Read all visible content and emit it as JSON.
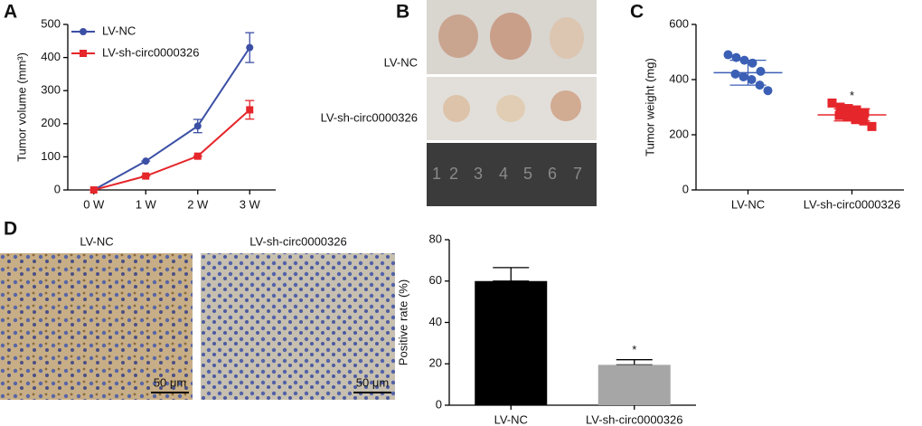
{
  "panel_letters": [
    "A",
    "B",
    "C",
    "D"
  ],
  "photo_panels": {
    "B": {
      "row_labels": [
        "LV-NC",
        "LV-sh-circ0000326"
      ],
      "ruler_labels": [
        "1",
        "2",
        "3",
        "4",
        "5",
        "6",
        "7"
      ]
    },
    "D": {
      "image_labels": [
        "LV-NC",
        "LV-sh-circ0000326"
      ],
      "scale_bars": [
        "50 μm",
        "50 μm"
      ]
    }
  },
  "chart_data": [
    {
      "type": "line",
      "y_label": "Tumor volume (mm³)",
      "categories": [
        "0 W",
        "1 W",
        "2 W",
        "3 W"
      ],
      "series": [
        {
          "name": "LV-NC",
          "color": "#3b4fa5",
          "marker": "circle",
          "values": [
            0,
            87,
            193,
            430
          ],
          "errors": [
            0,
            0,
            20,
            45
          ]
        },
        {
          "name": "LV-sh-circ0000326",
          "color": "#e5262b",
          "marker": "square",
          "values": [
            0,
            42,
            102,
            242
          ],
          "errors": [
            0,
            0,
            0,
            28
          ]
        }
      ],
      "ylim": [
        0,
        500
      ],
      "yticks": [
        0,
        100,
        200,
        300,
        400,
        500
      ],
      "legend": "upper left"
    },
    {
      "type": "dot",
      "y_label": "Tumor weight (mg)",
      "annotation": "*",
      "categories": [
        "LV-NC",
        "LV-sh-circ0000326"
      ],
      "colors": [
        "#3b5fb5",
        "#e5262b"
      ],
      "markers": [
        "circle",
        "square"
      ],
      "values": [
        [
          490,
          480,
          470,
          460,
          430,
          420,
          410,
          400,
          380,
          360
        ],
        [
          315,
          300,
          295,
          290,
          280,
          270,
          265,
          255,
          250,
          230
        ]
      ],
      "means": [
        425,
        272
      ],
      "sds": [
        45,
        22
      ],
      "ylim": [
        0,
        600
      ],
      "yticks": [
        0,
        200,
        400,
        600
      ]
    },
    {
      "type": "bar",
      "y_label": "Positive rate (%)",
      "annotation": "*",
      "categories": [
        "LV-NC",
        "LV-sh-circ0000326"
      ],
      "values": [
        60,
        19.5
      ],
      "errors": [
        6.5,
        2.5
      ],
      "colors": [
        "#000000",
        "#a6a6a6"
      ],
      "ylim": [
        0,
        80
      ],
      "yticks": [
        0,
        20,
        40,
        60,
        80
      ]
    }
  ]
}
